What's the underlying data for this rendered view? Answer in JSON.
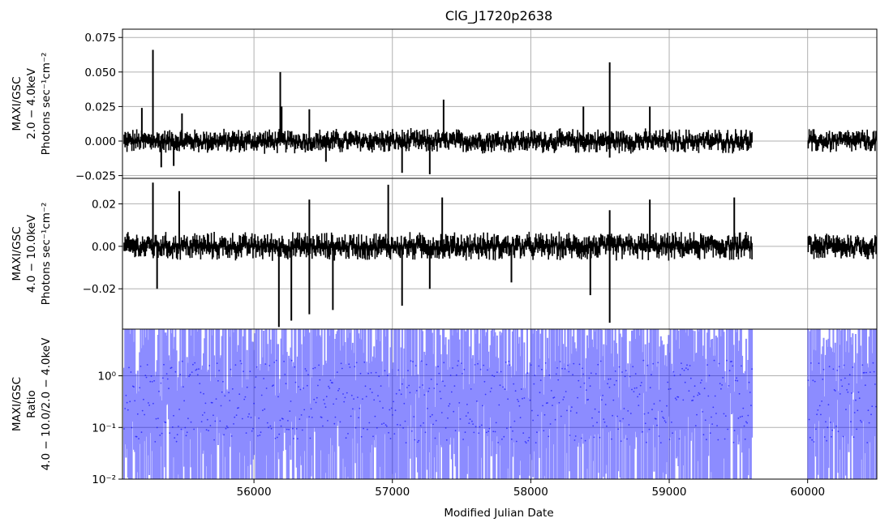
{
  "chart_data": {
    "title": "ClG_J1720p2638",
    "xlabel": "Modified Julian Date",
    "x_ticks": [
      "56000",
      "57000",
      "58000",
      "59000",
      "60000"
    ],
    "x_tick_values": [
      56000,
      57000,
      58000,
      59000,
      60000
    ],
    "xlim": [
      55050,
      60500
    ],
    "grid": true,
    "panels": [
      {
        "type": "line",
        "ylabel": [
          "MAXI/GSC",
          "2.0 − 4.0keV",
          "Photons sec⁻¹cm⁻²"
        ],
        "ylim": [
          -0.027,
          0.081
        ],
        "y_ticks": [
          "−0.025",
          "0.000",
          "0.025",
          "0.050",
          "0.075"
        ],
        "y_tick_values": [
          -0.025,
          0.0,
          0.025,
          0.05,
          0.075
        ],
        "color": "#000000",
        "spikes": [
          [
            55270,
            0.066
          ],
          [
            55190,
            0.024
          ],
          [
            56190,
            0.05
          ],
          [
            56200,
            0.025
          ],
          [
            55480,
            0.02
          ],
          [
            56400,
            0.023
          ],
          [
            57370,
            0.03
          ],
          [
            58380,
            0.025
          ],
          [
            58570,
            0.057
          ],
          [
            58860,
            0.025
          ],
          [
            59520,
            0.008
          ],
          [
            55330,
            -0.019
          ],
          [
            55420,
            -0.018
          ],
          [
            57070,
            -0.023
          ],
          [
            57270,
            -0.024
          ],
          [
            56520,
            -0.015
          ],
          [
            58570,
            -0.012
          ]
        ]
      },
      {
        "type": "line",
        "ylabel": [
          "MAXI/GSC",
          "4.0 − 10.0keV",
          "Photons sec⁻¹cm⁻²"
        ],
        "ylim": [
          -0.039,
          0.032
        ],
        "y_ticks": [
          "−0.02",
          "0.00",
          "0.02"
        ],
        "y_tick_values": [
          -0.02,
          0.0,
          0.02
        ],
        "color": "#000000",
        "spikes": [
          [
            55270,
            0.03
          ],
          [
            55460,
            0.026
          ],
          [
            56400,
            0.022
          ],
          [
            56970,
            0.029
          ],
          [
            57360,
            0.023
          ],
          [
            58860,
            0.022
          ],
          [
            59470,
            0.023
          ],
          [
            58570,
            0.017
          ],
          [
            56180,
            -0.038
          ],
          [
            56270,
            -0.035
          ],
          [
            56400,
            -0.032
          ],
          [
            56570,
            -0.03
          ],
          [
            57070,
            -0.028
          ],
          [
            57270,
            -0.02
          ],
          [
            58570,
            -0.036
          ],
          [
            58430,
            -0.023
          ],
          [
            55300,
            -0.02
          ],
          [
            57860,
            -0.017
          ]
        ]
      },
      {
        "type": "scatter",
        "ylabel": [
          "MAXI/GSC",
          "Ratio",
          "4.0 − 10.0/2.0 − 4.0keV"
        ],
        "yscale": "log",
        "ylim": [
          0.01,
          8
        ],
        "y_ticks": [
          "10⁻²",
          "10⁻¹",
          "10⁰"
        ],
        "y_tick_values": [
          0.01,
          0.1,
          1
        ],
        "color": "#0000ff"
      }
    ],
    "data_segments": [
      [
        55060,
        59600
      ],
      [
        60000,
        60500
      ]
    ]
  }
}
